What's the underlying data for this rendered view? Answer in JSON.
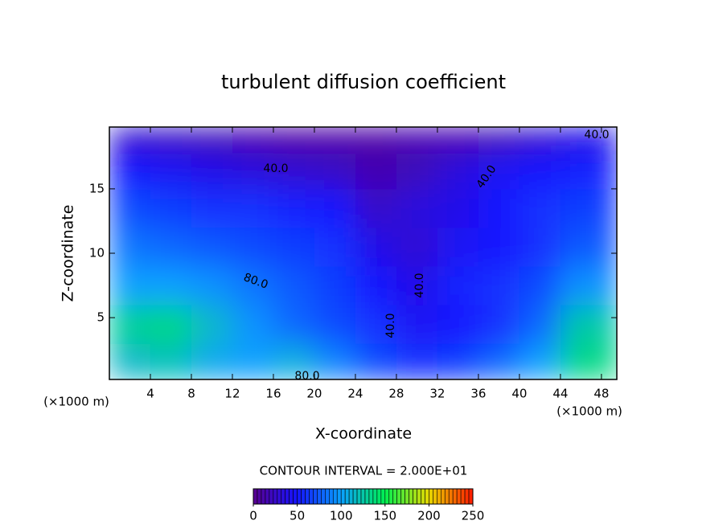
{
  "chart_data": {
    "type": "contour",
    "title": "turbulent diffusion coefficient",
    "x_label": "X-coordinate",
    "y_label": "Z-coordinate",
    "x_unit": "(×1000 m)",
    "contour_interval": "CONTOUR INTERVAL = 2.000E+01",
    "xlim": [
      0,
      49.5
    ],
    "ylim": [
      0.2,
      19.8
    ],
    "xticks": [
      4,
      8,
      12,
      16,
      20,
      24,
      28,
      32,
      36,
      40,
      44,
      48
    ],
    "yticks": [
      5,
      10,
      15
    ],
    "x": [
      2,
      6,
      10,
      14,
      18,
      22,
      26,
      30,
      34,
      38,
      42,
      46
    ],
    "y": [
      1.5,
      4.5,
      7.5,
      10.5,
      13.5,
      16.5,
      19
    ],
    "z": [
      [
        115,
        120,
        105,
        100,
        110,
        90,
        70,
        60,
        65,
        80,
        100,
        135
      ],
      [
        130,
        135,
        115,
        95,
        80,
        70,
        60,
        45,
        50,
        60,
        80,
        125
      ],
      [
        100,
        100,
        95,
        85,
        75,
        65,
        50,
        40,
        55,
        60,
        70,
        95
      ],
      [
        85,
        80,
        75,
        70,
        65,
        60,
        40,
        30,
        45,
        50,
        60,
        75
      ],
      [
        70,
        65,
        60,
        60,
        55,
        50,
        25,
        35,
        40,
        50,
        60,
        65
      ],
      [
        50,
        45,
        40,
        35,
        30,
        25,
        15,
        20,
        35,
        45,
        50,
        55
      ],
      [
        30,
        25,
        20,
        15,
        10,
        10,
        10,
        15,
        15,
        20,
        30,
        40
      ]
    ],
    "contour_levels": [
      {
        "value": 40,
        "label": "40.0"
      },
      {
        "value": 80,
        "label": "80.0"
      }
    ],
    "colorbar": {
      "lim": [
        0,
        250
      ],
      "ticks": [
        0,
        50,
        100,
        150,
        200,
        250
      ],
      "colors": [
        "#5a0090",
        "#1414ff",
        "#0aa0ff",
        "#00f050",
        "#e8d800",
        "#ff1800"
      ]
    }
  }
}
